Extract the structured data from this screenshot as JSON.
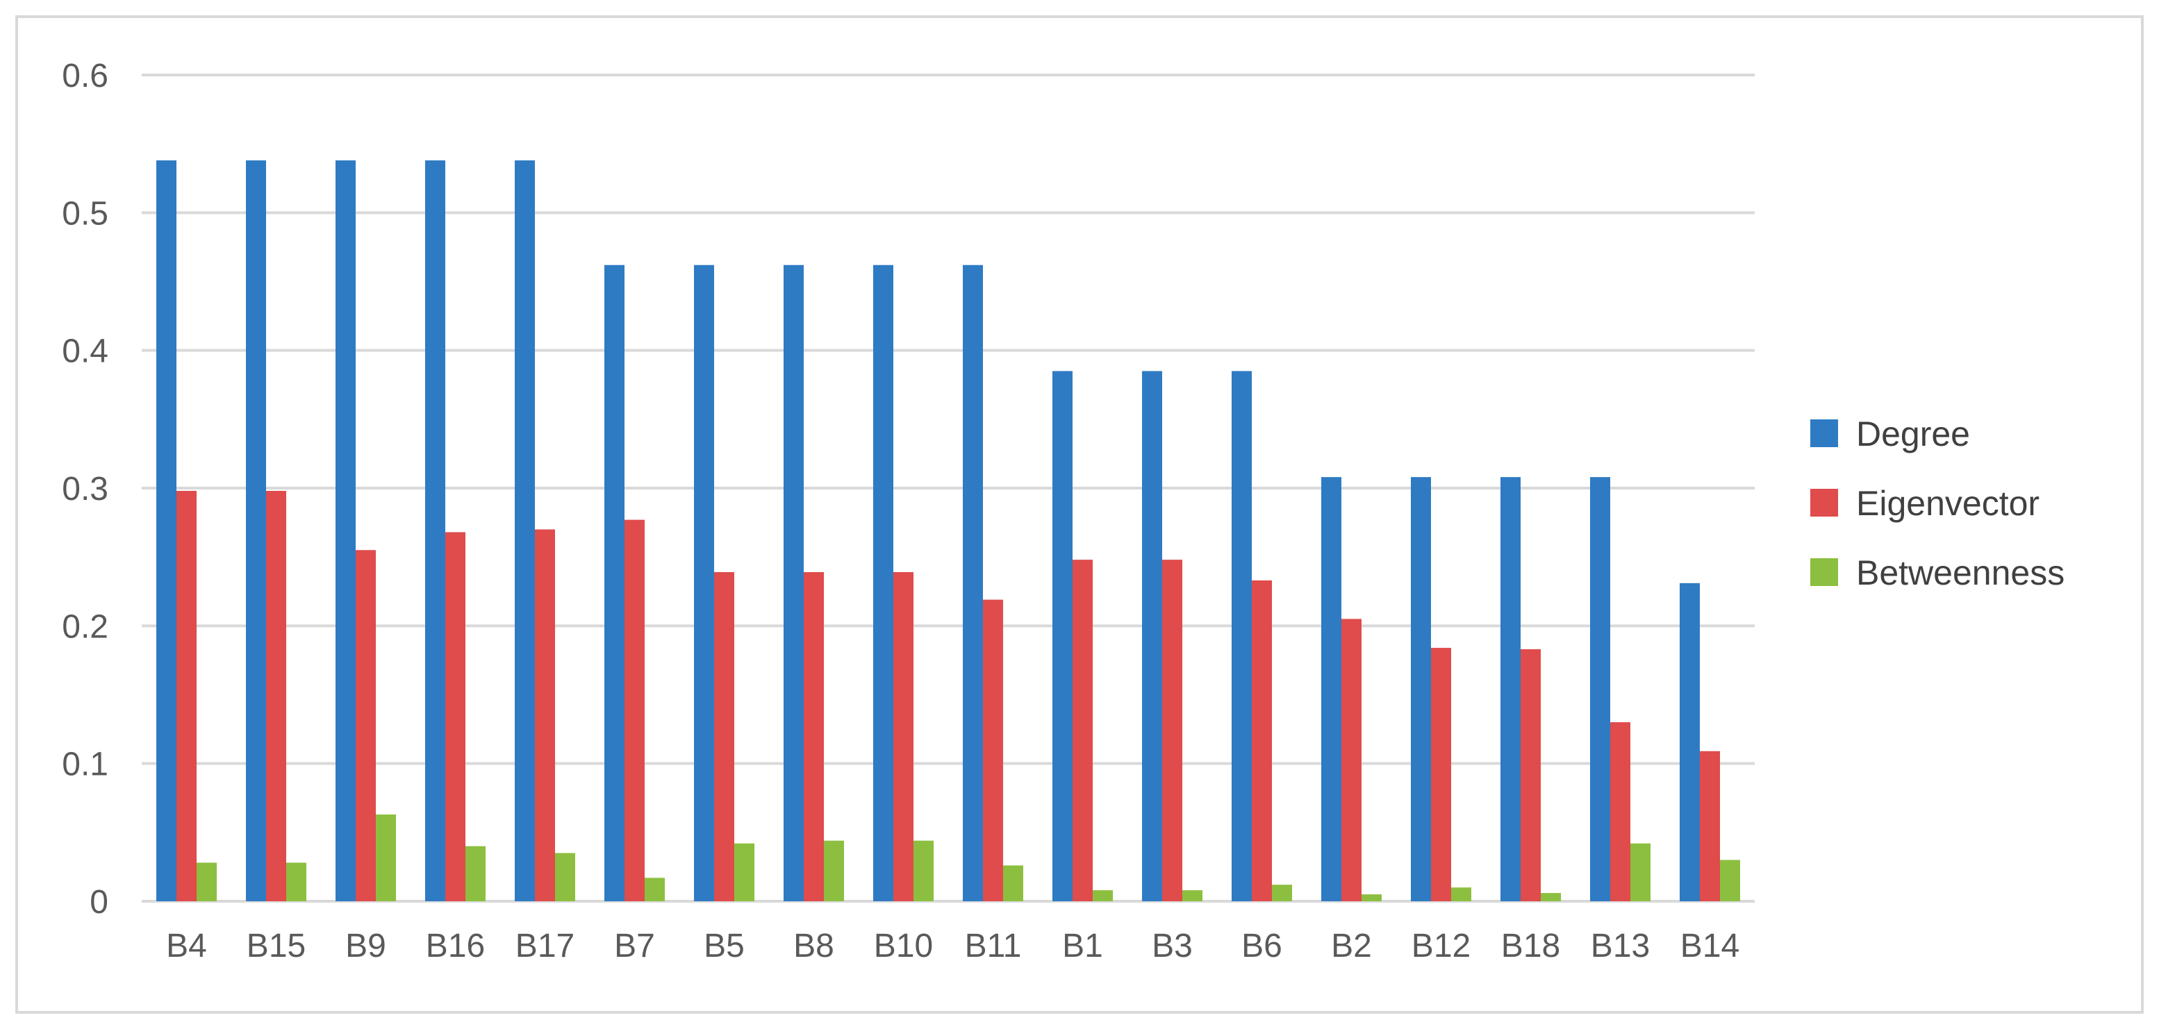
{
  "chart_data": {
    "type": "bar",
    "title": "",
    "xlabel": "",
    "ylabel": "",
    "categories": [
      "B4",
      "B15",
      "B9",
      "B16",
      "B17",
      "B7",
      "B5",
      "B8",
      "B10",
      "B11",
      "B1",
      "B3",
      "B6",
      "B2",
      "B12",
      "B18",
      "B13",
      "B14"
    ],
    "y_ticks": [
      "0",
      "0.1",
      "0.2",
      "0.3",
      "0.4",
      "0.5",
      "0.6"
    ],
    "ylim": [
      0,
      0.6
    ],
    "grid": true,
    "legend_position": "right",
    "series": [
      {
        "name": "Degree",
        "color": "#2e7bc4",
        "values": [
          0.538,
          0.538,
          0.538,
          0.538,
          0.538,
          0.462,
          0.462,
          0.462,
          0.462,
          0.462,
          0.385,
          0.385,
          0.385,
          0.308,
          0.308,
          0.308,
          0.308,
          0.231
        ]
      },
      {
        "name": "Eigenvector",
        "color": "#e04b4b",
        "values": [
          0.298,
          0.298,
          0.255,
          0.268,
          0.27,
          0.277,
          0.239,
          0.239,
          0.239,
          0.219,
          0.248,
          0.248,
          0.233,
          0.205,
          0.184,
          0.183,
          0.13,
          0.109
        ]
      },
      {
        "name": "Betweenness",
        "color": "#8cbf3f",
        "values": [
          0.028,
          0.028,
          0.063,
          0.04,
          0.035,
          0.017,
          0.042,
          0.044,
          0.044,
          0.026,
          0.008,
          0.008,
          0.012,
          0.005,
          0.01,
          0.006,
          0.042,
          0.03
        ]
      }
    ]
  }
}
